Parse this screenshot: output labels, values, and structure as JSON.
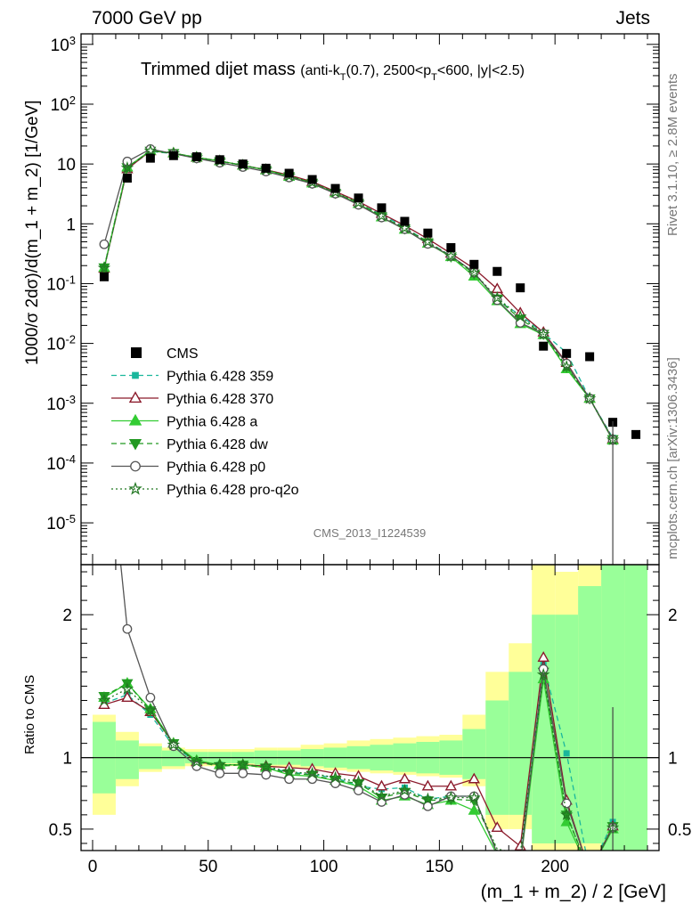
{
  "header": {
    "left": "7000 GeV pp",
    "right": "Jets",
    "side_top": "Rivet 3.1.10, ≥ 2.8M events",
    "side_bottom": "mcplots.cern.ch [arXiv:1306.3436]",
    "watermark": "CMS_2013_I1224539"
  },
  "chart_data": {
    "type": "scatter",
    "title": "Trimmed dijet mass",
    "subtitle": "(anti-k_T(0.7), 2500<p_T<600, |y|<2.5)",
    "xlabel": "(m_1 + m_2) / 2 [GeV]",
    "ylabel": "1000/σ 2dσ)/d(m_1 + m_2) [1/GeV]",
    "ratio_ylabel": "Ratio to CMS",
    "xlim": [
      -5,
      245
    ],
    "ylim": [
      2e-06,
      1500
    ],
    "yscale": "log",
    "ratio_ylim": [
      0.35,
      2.35
    ],
    "x_ticks": [
      "0",
      "50",
      "100",
      "150",
      "200"
    ],
    "y_ticks": [
      "10^-5",
      "10^-4",
      "10^-3",
      "10^-2",
      "10^-1",
      "1",
      "10",
      "10^2",
      "10^3"
    ],
    "ratio_ticks": [
      "0.5",
      "1",
      "2"
    ],
    "legend": [
      {
        "name": "CMS",
        "color": "#000000",
        "style": "data"
      },
      {
        "name": "Pythia 6.428 359",
        "color": "#1ab79c",
        "style": "dashed-square"
      },
      {
        "name": "Pythia 6.428 370",
        "color": "#8b1a2b",
        "style": "solid-triangle-open"
      },
      {
        "name": "Pythia 6.428 a",
        "color": "#33cc33",
        "style": "solid-triangle"
      },
      {
        "name": "Pythia 6.428 dw",
        "color": "#229922",
        "style": "dashed-triangle-down"
      },
      {
        "name": "Pythia 6.428 p0",
        "color": "#555555",
        "style": "solid-circle-open"
      },
      {
        "name": "Pythia 6.428 pro-q2o",
        "color": "#227722",
        "style": "dotted-star"
      }
    ],
    "x": [
      5,
      15,
      25,
      35,
      45,
      55,
      65,
      75,
      85,
      95,
      105,
      115,
      125,
      135,
      145,
      155,
      165,
      175,
      185,
      195,
      205,
      215,
      225,
      235
    ],
    "cms": [
      0.13,
      5.8,
      12.5,
      13.8,
      13.2,
      11.8,
      10.0,
      8.5,
      7.0,
      5.5,
      3.9,
      2.7,
      1.85,
      1.1,
      0.7,
      0.4,
      0.21,
      0.16,
      0.085,
      0.009,
      0.0068,
      0.006,
      0.00048,
      0.0003
    ],
    "band_green": [
      [
        0.75,
        1.25
      ],
      [
        0.85,
        1.12
      ],
      [
        0.92,
        1.08
      ],
      [
        0.94,
        1.05
      ],
      [
        0.96,
        1.04
      ],
      [
        0.96,
        1.04
      ],
      [
        0.96,
        1.04
      ],
      [
        0.95,
        1.05
      ],
      [
        0.95,
        1.05
      ],
      [
        0.94,
        1.06
      ],
      [
        0.93,
        1.07
      ],
      [
        0.92,
        1.08
      ],
      [
        0.91,
        1.09
      ],
      [
        0.9,
        1.1
      ],
      [
        0.89,
        1.11
      ],
      [
        0.88,
        1.12
      ],
      [
        0.85,
        1.2
      ],
      [
        0.6,
        1.4
      ],
      [
        0.6,
        1.6
      ],
      [
        0.4,
        2.0
      ],
      [
        0.4,
        2.0
      ],
      [
        0.4,
        2.2
      ],
      [
        0.35,
        2.35
      ],
      [
        0.35,
        2.35
      ]
    ],
    "band_yellow": [
      [
        0.6,
        1.3
      ],
      [
        0.8,
        1.18
      ],
      [
        0.9,
        1.1
      ],
      [
        0.92,
        1.07
      ],
      [
        0.94,
        1.06
      ],
      [
        0.94,
        1.06
      ],
      [
        0.94,
        1.06
      ],
      [
        0.93,
        1.07
      ],
      [
        0.93,
        1.07
      ],
      [
        0.92,
        1.09
      ],
      [
        0.91,
        1.1
      ],
      [
        0.9,
        1.12
      ],
      [
        0.89,
        1.13
      ],
      [
        0.88,
        1.14
      ],
      [
        0.87,
        1.15
      ],
      [
        0.86,
        1.16
      ],
      [
        0.8,
        1.3
      ],
      [
        0.5,
        1.6
      ],
      [
        0.5,
        1.8
      ],
      [
        0.35,
        2.35
      ],
      [
        0.35,
        2.3
      ],
      [
        0.35,
        2.35
      ],
      [
        0.35,
        2.35
      ],
      [
        0.35,
        2.35
      ]
    ],
    "series": [
      {
        "name": "Pythia 6.428 359",
        "ratio": [
          1.38,
          1.44,
          1.3,
          1.08,
          0.97,
          0.95,
          0.95,
          0.93,
          0.9,
          0.88,
          0.86,
          0.8,
          0.78,
          0.79,
          0.71,
          0.73,
          0.73,
          0.33,
          0.35,
          1.65,
          1.03,
          0.2,
          0.55,
          null
        ]
      },
      {
        "name": "Pythia 6.428 370",
        "ratio": [
          1.37,
          1.42,
          1.32,
          1.1,
          0.97,
          0.95,
          0.95,
          0.94,
          0.93,
          0.92,
          0.89,
          0.87,
          0.8,
          0.85,
          0.8,
          0.8,
          0.85,
          0.51,
          0.38,
          1.7,
          0.7,
          0.2,
          0.52,
          null
        ]
      },
      {
        "name": "Pythia 6.428 a",
        "ratio": [
          1.42,
          1.52,
          1.34,
          1.1,
          0.98,
          0.95,
          0.95,
          0.93,
          0.88,
          0.87,
          0.84,
          0.8,
          0.7,
          0.73,
          0.67,
          0.7,
          0.63,
          0.32,
          0.25,
          1.55,
          0.55,
          0.2,
          0.5,
          null
        ]
      },
      {
        "name": "Pythia 6.428 dw",
        "ratio": [
          1.43,
          1.52,
          1.33,
          1.1,
          0.97,
          0.94,
          0.95,
          0.93,
          0.89,
          0.88,
          0.84,
          0.82,
          0.72,
          0.76,
          0.7,
          0.71,
          0.7,
          0.35,
          0.3,
          1.6,
          0.6,
          0.2,
          0.52,
          null
        ]
      },
      {
        "name": "Pythia 6.428 p0",
        "ratio": [
          3.5,
          1.9,
          1.42,
          1.08,
          0.94,
          0.89,
          0.89,
          0.88,
          0.85,
          0.85,
          0.82,
          0.77,
          0.69,
          0.74,
          0.66,
          0.73,
          0.73,
          0.33,
          0.26,
          1.62,
          0.68,
          0.2,
          0.51,
          null
        ]
      },
      {
        "name": "Pythia 6.428 pro-q2o",
        "ratio": [
          1.4,
          1.48,
          1.33,
          1.09,
          0.97,
          0.95,
          0.95,
          0.94,
          0.9,
          0.89,
          0.86,
          0.83,
          0.73,
          0.77,
          0.71,
          0.72,
          0.72,
          0.36,
          0.33,
          1.58,
          0.6,
          0.2,
          0.51,
          null
        ]
      }
    ]
  }
}
